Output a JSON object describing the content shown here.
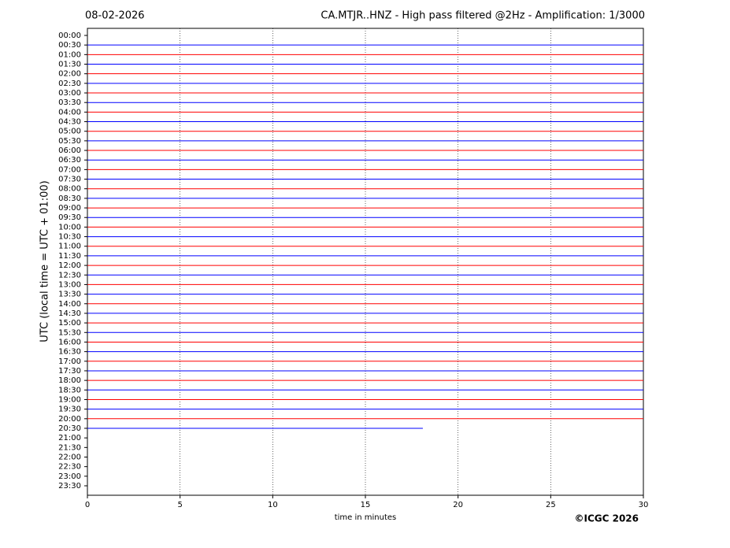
{
  "chart_data": {
    "type": "helicorder",
    "date": "08-02-2026",
    "title": "CA.MTJR..HNZ - High pass filtered @2Hz - Amplification: 1/3000",
    "xlabel": "time in minutes",
    "ylabel": "UTC (local time = UTC + 01:00)",
    "credit": "©ICGC 2026",
    "xlim": [
      0,
      30
    ],
    "xticks": [
      0,
      5,
      10,
      15,
      20,
      25,
      30
    ],
    "grid": true,
    "categories": [
      "00:00",
      "00:30",
      "01:00",
      "01:30",
      "02:00",
      "02:30",
      "03:00",
      "03:30",
      "04:00",
      "04:30",
      "05:00",
      "05:30",
      "06:00",
      "06:30",
      "07:00",
      "07:30",
      "08:00",
      "08:30",
      "09:00",
      "09:30",
      "10:00",
      "10:30",
      "11:00",
      "11:30",
      "12:00",
      "12:30",
      "13:00",
      "13:30",
      "14:00",
      "14:30",
      "15:00",
      "15:30",
      "16:00",
      "16:30",
      "17:00",
      "17:30",
      "18:00",
      "18:30",
      "19:00",
      "19:30",
      "20:00",
      "20:30",
      "21:00",
      "21:30",
      "22:00",
      "22:30",
      "23:00",
      "23:30"
    ],
    "traces": [
      null,
      {
        "color": "#0000ff",
        "x": [
          0,
          30
        ]
      },
      {
        "color": "#ff0000",
        "x": [
          0,
          30
        ]
      },
      {
        "color": "#0000ff",
        "x": [
          0,
          30
        ]
      },
      {
        "color": "#ff0000",
        "x": [
          0,
          30
        ]
      },
      {
        "color": "#0000ff",
        "x": [
          0,
          30
        ]
      },
      {
        "color": "#ff0000",
        "x": [
          0,
          30
        ]
      },
      {
        "color": "#0000ff",
        "x": [
          0,
          30
        ]
      },
      {
        "color": "#ff0000",
        "x": [
          0,
          30
        ]
      },
      {
        "color": "#0000ff",
        "x": [
          0,
          30
        ]
      },
      {
        "color": "#ff0000",
        "x": [
          0,
          30
        ]
      },
      {
        "color": "#0000ff",
        "x": [
          0,
          30
        ]
      },
      {
        "color": "#ff0000",
        "x": [
          0,
          30
        ]
      },
      {
        "color": "#0000ff",
        "x": [
          0,
          30
        ]
      },
      {
        "color": "#ff0000",
        "x": [
          0,
          30
        ]
      },
      {
        "color": "#0000ff",
        "x": [
          0,
          30
        ]
      },
      {
        "color": "#ff0000",
        "x": [
          0,
          30
        ]
      },
      {
        "color": "#0000ff",
        "x": [
          0,
          30
        ]
      },
      {
        "color": "#ff0000",
        "x": [
          0,
          30
        ]
      },
      {
        "color": "#0000ff",
        "x": [
          0,
          30
        ]
      },
      {
        "color": "#ff0000",
        "x": [
          0,
          30
        ]
      },
      {
        "color": "#0000ff",
        "x": [
          0,
          30
        ]
      },
      {
        "color": "#ff0000",
        "x": [
          0,
          30
        ]
      },
      {
        "color": "#0000ff",
        "x": [
          0,
          30
        ]
      },
      {
        "color": "#ff0000",
        "x": [
          0,
          30
        ]
      },
      {
        "color": "#0000ff",
        "x": [
          0,
          30
        ]
      },
      {
        "color": "#ff0000",
        "x": [
          0,
          30
        ]
      },
      {
        "color": "#0000ff",
        "x": [
          0,
          30
        ]
      },
      {
        "color": "#ff0000",
        "x": [
          0,
          30
        ]
      },
      {
        "color": "#0000ff",
        "x": [
          0,
          30
        ]
      },
      {
        "color": "#ff0000",
        "x": [
          0,
          30
        ]
      },
      {
        "color": "#0000ff",
        "x": [
          0,
          30
        ]
      },
      {
        "color": "#ff0000",
        "x": [
          0,
          30
        ]
      },
      {
        "color": "#0000ff",
        "x": [
          0,
          30
        ]
      },
      {
        "color": "#ff0000",
        "x": [
          0,
          30
        ]
      },
      {
        "color": "#0000ff",
        "x": [
          0,
          30
        ]
      },
      {
        "color": "#ff0000",
        "x": [
          0,
          30
        ]
      },
      {
        "color": "#0000ff",
        "x": [
          0,
          30
        ]
      },
      {
        "color": "#ff0000",
        "x": [
          0,
          30
        ]
      },
      {
        "color": "#0000ff",
        "x": [
          0,
          30
        ]
      },
      {
        "color": "#ff0000",
        "x": [
          0,
          30
        ]
      },
      {
        "color": "#0000ff",
        "x": [
          0,
          18.1
        ]
      },
      null,
      null,
      null,
      null,
      null,
      null
    ]
  }
}
